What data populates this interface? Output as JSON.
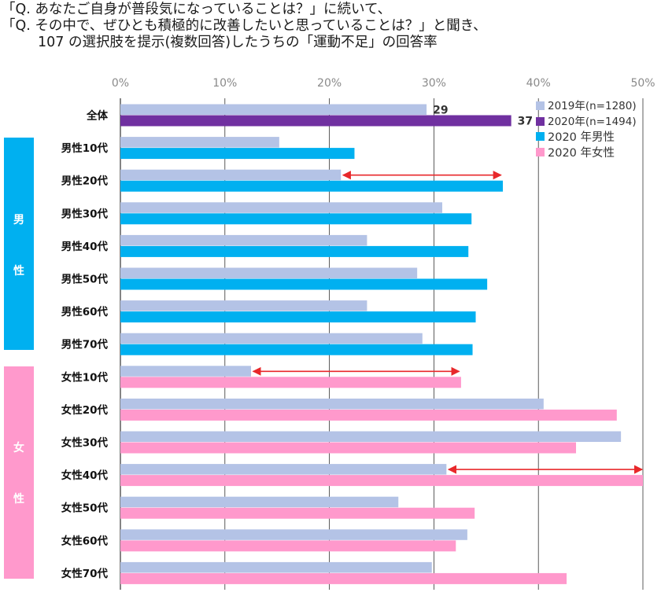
{
  "title": {
    "line1": "「Q. あなたご自身が普段気になっていることは？」に続いて、",
    "line2": "「Q. その中で、ぜひとも積極的に改善したいと思っていることは？」と聞き、",
    "line3": "107 の選択肢を提示(複数回答)したうちの「運動不足」の回答率"
  },
  "side_labels": {
    "male": [
      "男",
      "性"
    ],
    "female": [
      "女",
      "性"
    ]
  },
  "colors": {
    "y2019": "#b4c3e6",
    "y2020_all": "#7030a0",
    "y2020_male": "#00b0f0",
    "y2020_female": "#ff99cc",
    "male_side": "#00b0f0",
    "female_side": "#ff99cc",
    "arrow": "#e8282b",
    "grid": "#333333"
  },
  "chart_data": {
    "type": "bar",
    "orientation": "horizontal",
    "xlim": [
      0,
      50
    ],
    "xticks": [
      "0%",
      "10%",
      "20%",
      "30%",
      "40%",
      "50%"
    ],
    "categories": [
      "全体",
      "男性10代",
      "男性20代",
      "男性30代",
      "男性40代",
      "男性50代",
      "男性60代",
      "男性70代",
      "女性10代",
      "女性20代",
      "女性30代",
      "女性40代",
      "女性50代",
      "女性60代",
      "女性70代"
    ],
    "series": [
      {
        "name": "2019年(n=1280)",
        "values": [
          29.3,
          15.2,
          21.1,
          30.8,
          23.6,
          28.4,
          23.6,
          28.9,
          12.5,
          40.5,
          47.9,
          31.2,
          26.6,
          33.2,
          29.8
        ]
      },
      {
        "name": "2020年(n=1494)",
        "values": [
          37.4,
          22.4,
          36.6,
          33.6,
          33.3,
          35.1,
          34.0,
          33.7,
          32.6,
          47.5,
          43.6,
          50.0,
          33.9,
          32.1,
          42.7
        ]
      }
    ],
    "group_colors": [
      "all",
      "male",
      "male",
      "male",
      "male",
      "male",
      "male",
      "male",
      "female",
      "female",
      "female",
      "female",
      "female",
      "female",
      "female"
    ],
    "data_labels": [
      {
        "category": "全体",
        "series": 0,
        "text": "29"
      },
      {
        "category": "全体",
        "series": 1,
        "text": "37"
      }
    ],
    "annotations": [
      {
        "type": "double-arrow",
        "category": "男性20代",
        "from": 21.3,
        "to": 36.5
      },
      {
        "type": "double-arrow",
        "category": "女性10代",
        "from": 12.7,
        "to": 32.5
      },
      {
        "type": "double-arrow",
        "category": "女性40代",
        "from": 31.4,
        "to": 50.0
      }
    ],
    "legend": {
      "position": "top-right",
      "entries": [
        "2019年(n=1280)",
        "2020年(n=1494)",
        "2020 年男性",
        "2020 年女性"
      ]
    }
  }
}
